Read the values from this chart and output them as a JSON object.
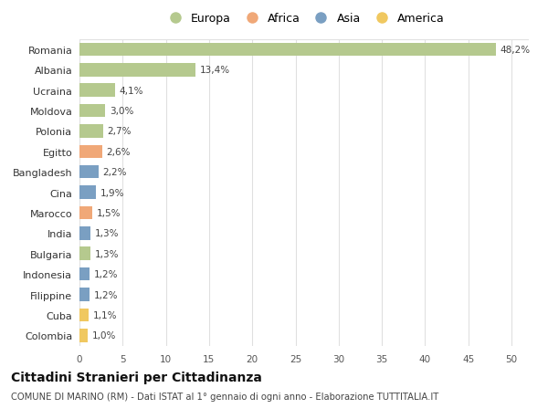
{
  "countries": [
    "Romania",
    "Albania",
    "Ucraina",
    "Moldova",
    "Polonia",
    "Egitto",
    "Bangladesh",
    "Cina",
    "Marocco",
    "India",
    "Bulgaria",
    "Indonesia",
    "Filippine",
    "Cuba",
    "Colombia"
  ],
  "values": [
    48.2,
    13.4,
    4.1,
    3.0,
    2.7,
    2.6,
    2.2,
    1.9,
    1.5,
    1.3,
    1.3,
    1.2,
    1.2,
    1.1,
    1.0
  ],
  "labels": [
    "48,2%",
    "13,4%",
    "4,1%",
    "3,0%",
    "2,7%",
    "2,6%",
    "2,2%",
    "1,9%",
    "1,5%",
    "1,3%",
    "1,3%",
    "1,2%",
    "1,2%",
    "1,1%",
    "1,0%"
  ],
  "continents": [
    "Europa",
    "Europa",
    "Europa",
    "Europa",
    "Europa",
    "Africa",
    "Asia",
    "Asia",
    "Africa",
    "Asia",
    "Europa",
    "Asia",
    "Asia",
    "America",
    "America"
  ],
  "continent_colors": {
    "Europa": "#b5c98e",
    "Africa": "#f0a878",
    "Asia": "#7a9fc2",
    "America": "#f0c860"
  },
  "legend_order": [
    "Europa",
    "Africa",
    "Asia",
    "America"
  ],
  "title": "Cittadini Stranieri per Cittadinanza",
  "subtitle": "COMUNE DI MARINO (RM) - Dati ISTAT al 1° gennaio di ogni anno - Elaborazione TUTTITALIA.IT",
  "xlim": [
    0,
    52
  ],
  "xticks": [
    0,
    5,
    10,
    15,
    20,
    25,
    30,
    35,
    40,
    45,
    50
  ],
  "background_color": "#ffffff",
  "grid_color": "#e0e0e0"
}
